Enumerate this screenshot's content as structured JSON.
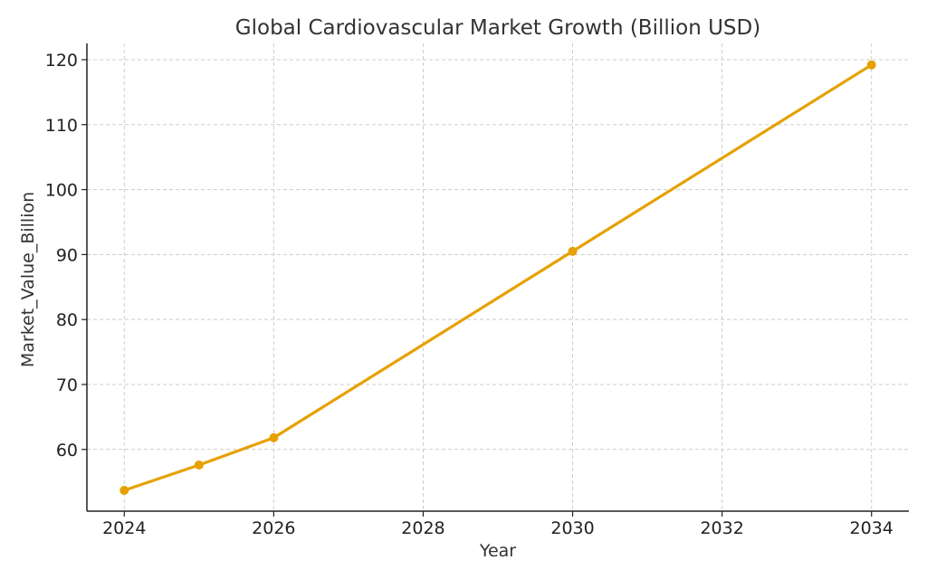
{
  "chart_data": {
    "type": "line",
    "title": "Global Cardiovascular Market Growth (Billion USD)",
    "xlabel": "Year",
    "ylabel": "Market_Value_Billion",
    "xlim": [
      2023.5,
      2034.5
    ],
    "ylim": [
      50.5,
      122.5
    ],
    "xticks": [
      2024,
      2026,
      2028,
      2030,
      2032,
      2034
    ],
    "yticks": [
      60,
      70,
      80,
      90,
      100,
      110,
      120
    ],
    "grid": true,
    "series": [
      {
        "color": "#e6a100",
        "points": [
          {
            "x": 2024,
            "y": 53.7
          },
          {
            "x": 2025,
            "y": 57.6
          },
          {
            "x": 2026,
            "y": 61.8
          },
          {
            "x": 2030,
            "y": 90.5
          },
          {
            "x": 2034,
            "y": 119.2
          }
        ]
      }
    ]
  }
}
